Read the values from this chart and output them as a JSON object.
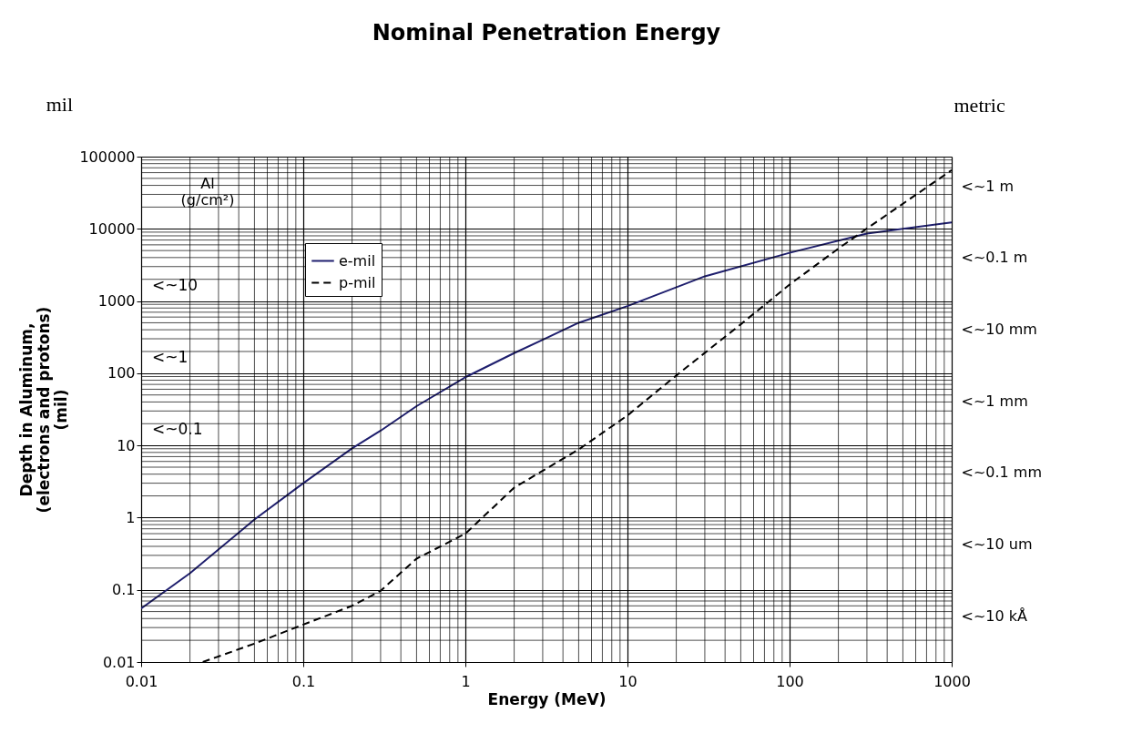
{
  "chart_data": {
    "type": "line",
    "title": "Nominal Penetration Energy",
    "xlabel": "Energy (MeV)",
    "ylabel": "Depth in Aluminum, (electrons and protons) (mil)",
    "y2label": "metric",
    "y2_categories": [
      "<~1 m",
      "<~0.1 m",
      "<~10 mm",
      "<~1 mm",
      "<~0.1 mm",
      "<~10 um",
      "<~10 kÅ"
    ],
    "annotations": [
      "mil",
      "Al (g/cm²)",
      "<~10",
      "<~1",
      "<~0.1"
    ],
    "log": "xy",
    "grid": true,
    "legend": "top left",
    "xlim": [
      0.01,
      1000
    ],
    "xticks": [
      0.01,
      0.1,
      1,
      10,
      100,
      1000
    ],
    "ylim": [
      0.01,
      100000
    ],
    "yticks": [
      0.01,
      0.1,
      1,
      10,
      100,
      1000,
      10000,
      100000
    ],
    "series": [
      {
        "name": "e-mil",
        "color": "#1f1f6e",
        "line_style": "solid",
        "x": [
          0.01,
          0.02,
          0.05,
          0.1,
          0.2,
          0.3,
          0.5,
          1,
          2,
          3,
          5,
          10,
          30,
          100,
          300,
          1000
        ],
        "values": [
          0.055,
          0.17,
          0.94,
          3.0,
          9.1,
          16,
          35,
          88,
          190,
          290,
          500,
          850,
          2200,
          4650,
          8600,
          12300
        ]
      },
      {
        "name": "p-mil",
        "color": "#000000",
        "line_style": "dashed",
        "x": [
          0.024,
          0.05,
          0.1,
          0.2,
          0.3,
          0.5,
          1,
          2,
          5,
          10,
          20,
          50,
          100,
          200,
          300,
          1000
        ],
        "values": [
          0.01,
          0.018,
          0.033,
          0.06,
          0.097,
          0.27,
          0.6,
          2.6,
          8.8,
          26,
          93,
          476,
          1690,
          5330,
          10100,
          65000
        ]
      }
    ]
  }
}
